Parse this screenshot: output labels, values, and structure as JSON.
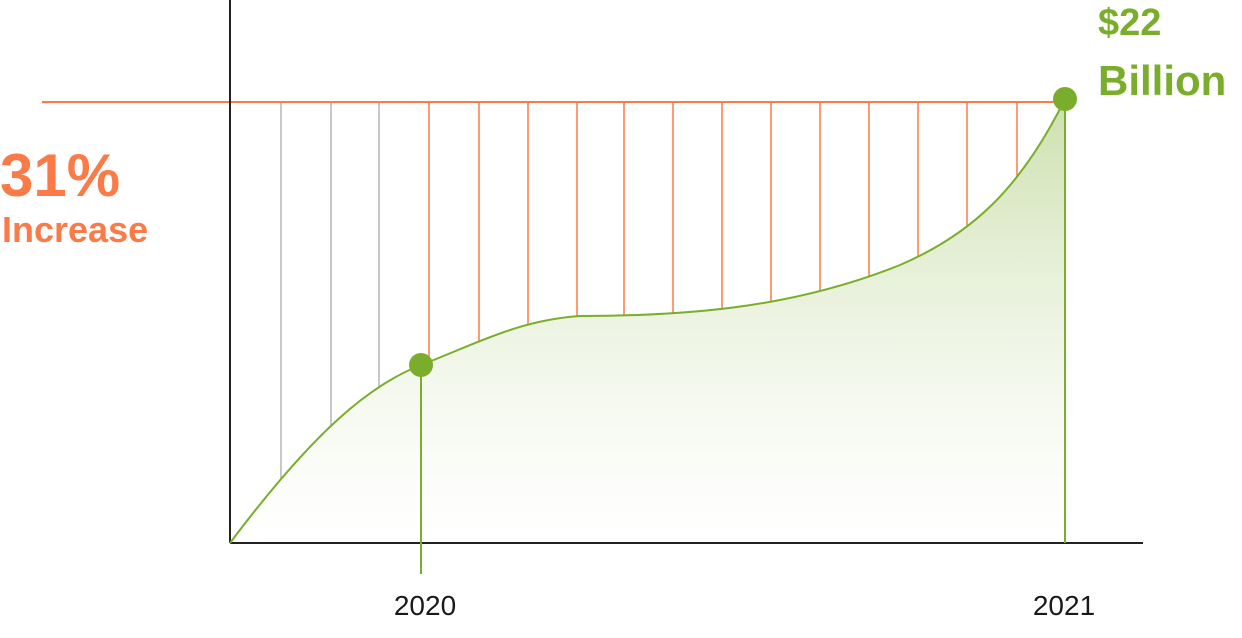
{
  "chart_data": {
    "type": "area",
    "title": "",
    "xlabel": "",
    "ylabel": "",
    "x_tick_labels": [
      "2020",
      "2021"
    ],
    "annotations": {
      "increase_value": "31%",
      "increase_label": "Increase",
      "end_value": "$22",
      "end_unit": "Billion"
    },
    "highlighted_points": [
      {
        "label": "2020"
      },
      {
        "label": "2021",
        "value_billion": 22
      }
    ],
    "increase_percent": 31,
    "colors": {
      "line": "#7aad2b",
      "marker": "#7aad2b",
      "reference_line": "#fa7b47",
      "gap_lines": "#fa7b47",
      "pre_2020_lines": "#b5b5b5",
      "axis": "#222222",
      "fill_top": "#c9dea9"
    },
    "grid": false,
    "legend": "none"
  }
}
